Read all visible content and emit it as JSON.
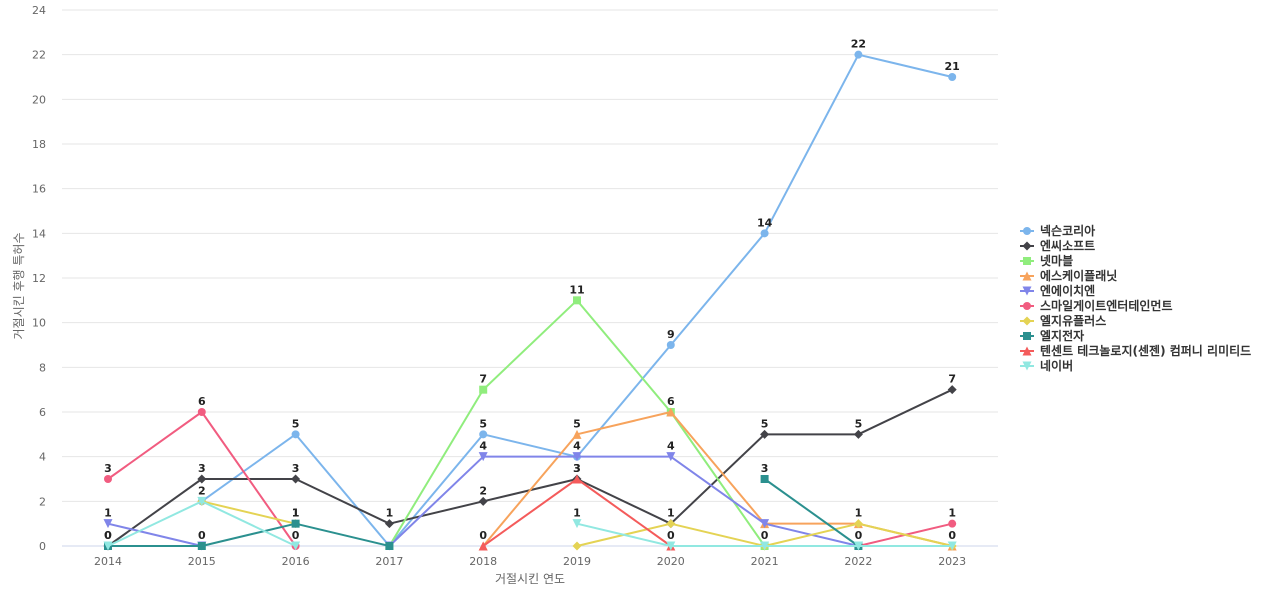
{
  "chart_data": {
    "type": "line",
    "xlabel": "거절시킨 연도",
    "ylabel": "거절시킨 후행 특허수",
    "categories": [
      "2014",
      "2015",
      "2016",
      "2017",
      "2018",
      "2019",
      "2020",
      "2021",
      "2022",
      "2023"
    ],
    "ylim": [
      0,
      24
    ],
    "yticks": [
      0,
      2,
      4,
      6,
      8,
      10,
      12,
      14,
      16,
      18,
      20,
      22,
      24
    ],
    "grid": true,
    "legend_position": "right",
    "series": [
      {
        "name": "넥슨코리아",
        "color": "#7cb5ec",
        "marker": "circle",
        "values": [
          null,
          2,
          5,
          0,
          5,
          4,
          9,
          14,
          22,
          21
        ],
        "labeled": [
          false,
          false,
          true,
          false,
          true,
          false,
          true,
          true,
          true,
          true
        ]
      },
      {
        "name": "엔씨소프트",
        "color": "#434348",
        "marker": "diamond",
        "values": [
          0,
          3,
          3,
          1,
          2,
          3,
          1,
          5,
          5,
          7
        ],
        "labeled": [
          true,
          true,
          true,
          true,
          true,
          true,
          true,
          true,
          true,
          true
        ]
      },
      {
        "name": "넷마블",
        "color": "#90ed7d",
        "marker": "square",
        "values": [
          null,
          null,
          null,
          0,
          7,
          11,
          6,
          0,
          null,
          null
        ],
        "labeled": [
          false,
          false,
          false,
          false,
          true,
          true,
          false,
          false,
          false,
          false
        ]
      },
      {
        "name": "에스케이플래닛",
        "color": "#f7a35c",
        "marker": "triangle",
        "values": [
          null,
          null,
          null,
          null,
          0,
          5,
          6,
          1,
          1,
          0
        ],
        "labeled": [
          false,
          false,
          false,
          false,
          false,
          true,
          true,
          false,
          false,
          false
        ]
      },
      {
        "name": "엔에이치엔",
        "color": "#8085e9",
        "marker": "triangle-down",
        "values": [
          1,
          0,
          null,
          0,
          4,
          4,
          4,
          1,
          0,
          null
        ],
        "labeled": [
          true,
          false,
          false,
          false,
          true,
          true,
          true,
          false,
          false,
          false
        ]
      },
      {
        "name": "스마일게이트엔터테인먼트",
        "color": "#f15c80",
        "marker": "circle",
        "values": [
          3,
          6,
          0,
          null,
          null,
          null,
          null,
          null,
          0,
          1
        ],
        "labeled": [
          true,
          true,
          false,
          false,
          false,
          false,
          false,
          false,
          false,
          true
        ]
      },
      {
        "name": "엘지유플러스",
        "color": "#e4d354",
        "marker": "diamond",
        "values": [
          null,
          2,
          1,
          null,
          null,
          0,
          1,
          0,
          1,
          0
        ],
        "labeled": [
          false,
          true,
          true,
          false,
          false,
          false,
          false,
          false,
          true,
          false
        ]
      },
      {
        "name": "엘지전자",
        "color": "#2b908f",
        "marker": "square",
        "values": [
          0,
          0,
          1,
          0,
          null,
          null,
          null,
          3,
          0,
          null
        ],
        "labeled": [
          true,
          true,
          true,
          false,
          false,
          false,
          false,
          true,
          true,
          false
        ]
      },
      {
        "name": "텐센트 테크놀로지(센젠) 컴퍼니 리미티드",
        "color": "#f45b5b",
        "marker": "triangle",
        "values": [
          null,
          null,
          null,
          null,
          0,
          3,
          0,
          null,
          null,
          null
        ],
        "labeled": [
          false,
          false,
          false,
          false,
          true,
          true,
          true,
          false,
          false,
          false
        ]
      },
      {
        "name": "네이버",
        "color": "#91e8e1",
        "marker": "triangle-down",
        "values": [
          0,
          2,
          0,
          null,
          null,
          1,
          0,
          0,
          0,
          0
        ],
        "labeled": [
          false,
          false,
          true,
          false,
          false,
          true,
          false,
          true,
          false,
          true
        ]
      }
    ]
  }
}
